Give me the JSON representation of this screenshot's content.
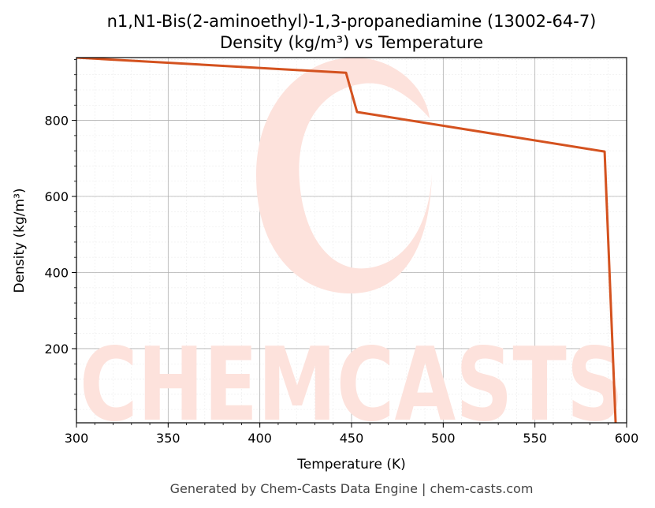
{
  "chart_data": {
    "type": "line",
    "title": "n1,N1-Bis(2-aminoethyl)-1,3-propanediamine (13002-64-7)",
    "subtitle": "Density (kg/m³) vs Temperature",
    "xlabel": "Temperature (K)",
    "ylabel": "Density (kg/m³)",
    "xlim": [
      300,
      600
    ],
    "ylim": [
      5,
      965
    ],
    "xticks": [
      300,
      350,
      400,
      450,
      500,
      550,
      600
    ],
    "yticks": [
      200,
      400,
      600,
      800
    ],
    "grid": true,
    "minor_grid": true,
    "series": [
      {
        "color": "#d4521f",
        "x": [
          300,
          447,
          453,
          588,
          594
        ],
        "y": [
          965,
          925,
          822,
          718,
          5
        ]
      }
    ]
  },
  "watermark": {
    "text": "CHEMCASTS",
    "color": "#fde2dc"
  },
  "footer": "Generated by Chem-Casts Data Engine | chem-casts.com"
}
